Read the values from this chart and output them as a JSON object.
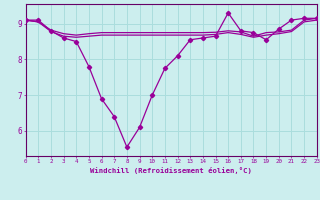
{
  "xlabel": "Windchill (Refroidissement éolien,°C)",
  "x": [
    0,
    1,
    2,
    3,
    4,
    5,
    6,
    7,
    8,
    9,
    10,
    11,
    12,
    13,
    14,
    15,
    16,
    17,
    18,
    19,
    20,
    21,
    22,
    23
  ],
  "line1": [
    9.1,
    9.1,
    8.8,
    8.6,
    8.5,
    7.8,
    6.9,
    6.4,
    5.55,
    6.1,
    7.0,
    7.75,
    8.1,
    8.55,
    8.6,
    8.65,
    9.3,
    8.8,
    8.75,
    8.55,
    8.85,
    9.1,
    9.15,
    9.15
  ],
  "line2": [
    9.1,
    9.05,
    8.78,
    8.65,
    8.62,
    8.65,
    8.68,
    8.68,
    8.68,
    8.68,
    8.68,
    8.68,
    8.68,
    8.68,
    8.68,
    8.7,
    8.75,
    8.7,
    8.62,
    8.68,
    8.72,
    8.78,
    9.05,
    9.1
  ],
  "line3": [
    9.1,
    9.05,
    8.82,
    8.72,
    8.68,
    8.72,
    8.75,
    8.75,
    8.75,
    8.75,
    8.75,
    8.75,
    8.75,
    8.75,
    8.75,
    8.76,
    8.8,
    8.77,
    8.65,
    8.75,
    8.77,
    8.82,
    9.1,
    9.15
  ],
  "ylim": [
    5.3,
    9.55
  ],
  "xlim": [
    0,
    23
  ],
  "yticks": [
    6,
    7,
    8,
    9
  ],
  "xticks": [
    0,
    1,
    2,
    3,
    4,
    5,
    6,
    7,
    8,
    9,
    10,
    11,
    12,
    13,
    14,
    15,
    16,
    17,
    18,
    19,
    20,
    21,
    22,
    23
  ],
  "line_color": "#990099",
  "bg_color": "#cceeee",
  "grid_color": "#aadddd",
  "spine_color": "#660066"
}
